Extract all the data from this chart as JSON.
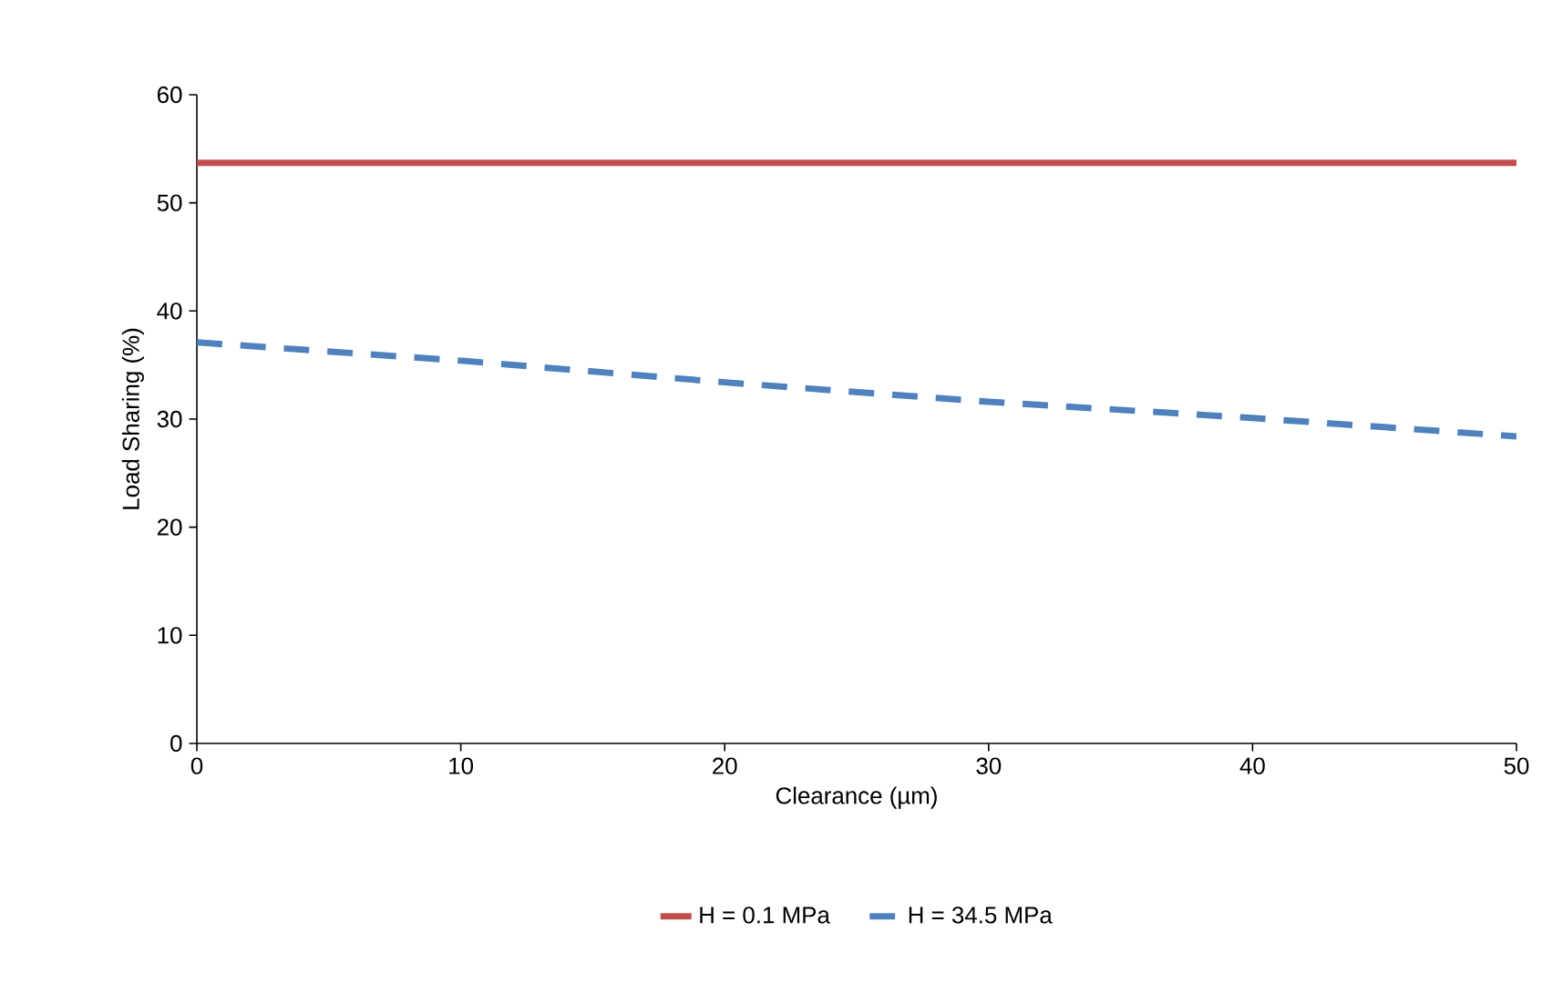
{
  "chart_data": {
    "type": "line",
    "xlabel": "Clearance (µm)",
    "ylabel": "Load Sharing (%)",
    "x": [
      0,
      10,
      20,
      30,
      40,
      50
    ],
    "series": [
      {
        "name": "H = 0.1 MPa",
        "color": "#c0504d",
        "values": [
          53.7,
          53.7,
          53.7,
          53.7,
          53.7,
          53.7
        ],
        "line_style": "solid"
      },
      {
        "name": "H = 34.5 MPa",
        "color": "#4f81bd",
        "values": [
          37.1,
          35.4,
          33.4,
          31.6,
          30.1,
          28.4
        ],
        "line_style": "dashed"
      }
    ],
    "xlim": [
      0,
      50
    ],
    "ylim": [
      0,
      60
    ],
    "xticks": [
      0,
      10,
      20,
      30,
      40,
      50
    ],
    "yticks": [
      0,
      10,
      20,
      30,
      40,
      50,
      60
    ],
    "grid": false,
    "legend": "bottom",
    "marker": "none"
  }
}
